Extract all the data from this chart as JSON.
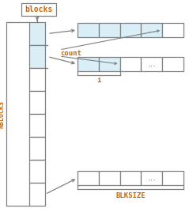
{
  "bg_color": "#ffffff",
  "box_color_light": "#daeef8",
  "box_color_border": "#808080",
  "text_color_orange": "#cc6600",
  "text_color_gray": "#666666",
  "label_blocks": "blocks",
  "label_count": "count",
  "label_i": "i",
  "label_nblocks": "NBLOCKS",
  "label_blksize": "BLKSIZE",
  "ellipsis": "...",
  "figw": 2.44,
  "figh": 2.73,
  "dpi": 100
}
